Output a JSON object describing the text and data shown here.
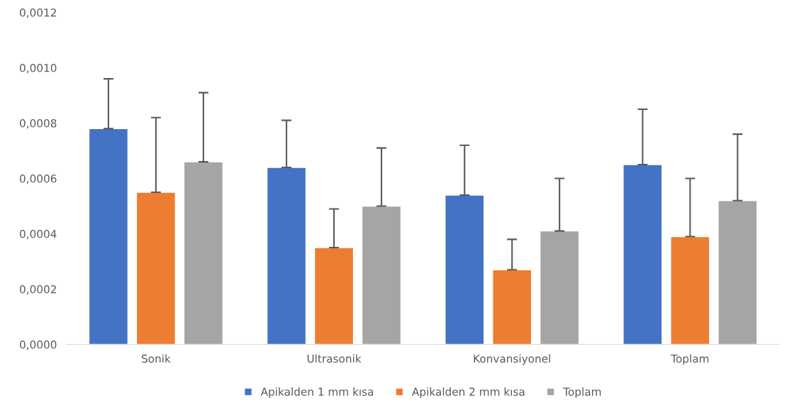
{
  "chart_data": {
    "type": "bar",
    "categories": [
      "Sonik",
      "Ultrasonik",
      "Konvansiyonel",
      "Toplam"
    ],
    "series": [
      {
        "name": "Apikalden 1 mm kısa",
        "color": "#4472c4",
        "values": [
          0.00078,
          0.00064,
          0.00054,
          0.00065
        ],
        "errors": [
          [
            0.00078,
            0.00096
          ],
          [
            0.00064,
            0.00081
          ],
          [
            0.00054,
            0.00072
          ],
          [
            0.00065,
            0.00085
          ]
        ]
      },
      {
        "name": "Apikalden 2 mm kısa",
        "color": "#ed7d31",
        "values": [
          0.00055,
          0.00035,
          0.00027,
          0.00039
        ],
        "errors": [
          [
            0.00055,
            0.00082
          ],
          [
            0.00035,
            0.00049
          ],
          [
            0.00027,
            0.00038
          ],
          [
            0.00039,
            0.0006
          ]
        ]
      },
      {
        "name": "Toplam",
        "color": "#a5a5a5",
        "values": [
          0.00066,
          0.0005,
          0.00041,
          0.00052
        ],
        "errors": [
          [
            0.00066,
            0.00091
          ],
          [
            0.0005,
            0.00071
          ],
          [
            0.00041,
            0.0006
          ],
          [
            0.00052,
            0.00076
          ]
        ]
      }
    ],
    "ylim": [
      0,
      0.0012
    ],
    "yticks": [
      {
        "value": 0,
        "label": "0,0000"
      },
      {
        "value": 0.0002,
        "label": "0,0002"
      },
      {
        "value": 0.0004,
        "label": "0,0004"
      },
      {
        "value": 0.0006,
        "label": "0,0006"
      },
      {
        "value": 0.0008,
        "label": "0,0008"
      },
      {
        "value": 0.001,
        "label": "0,0010"
      },
      {
        "value": 0.0012,
        "label": "0,0012"
      }
    ],
    "grid": false,
    "legend": "bottom"
  }
}
